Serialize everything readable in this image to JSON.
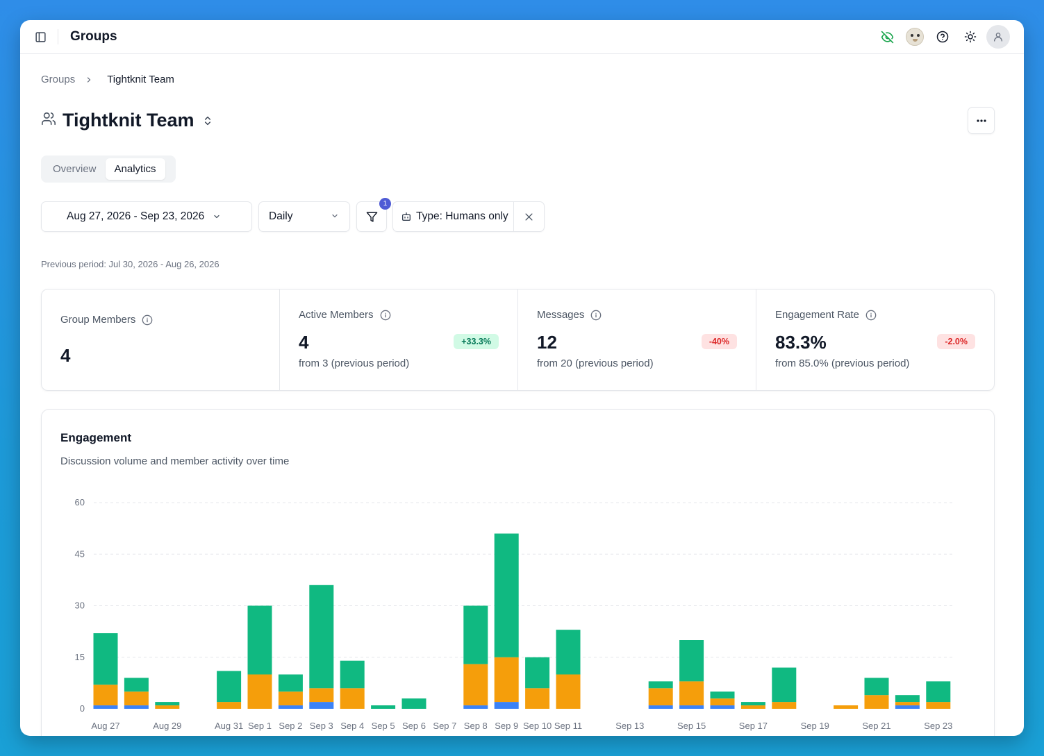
{
  "app": {
    "title": "Groups"
  },
  "icons": {
    "sidebar_toggle": "sidebar-icon",
    "visibility": "eye-off-icon",
    "mascot": "mascot-avatar",
    "help": "help-circle-icon",
    "theme": "sun-icon",
    "user": "user-icon"
  },
  "breadcrumb": {
    "parent": "Groups",
    "current": "Tightknit Team"
  },
  "group": {
    "name": "Tightknit Team"
  },
  "tabs": [
    {
      "label": "Overview",
      "active": false
    },
    {
      "label": "Analytics",
      "active": true
    }
  ],
  "filters": {
    "date_range": "Aug 27, 2026 - Sep 23, 2026",
    "granularity": "Daily",
    "filter_count": "1",
    "chip_label": "Type: Humans only",
    "previous_period": "Previous period: Jul 30, 2026 - Aug 26, 2026"
  },
  "stats": [
    {
      "label": "Group Members",
      "value": "4"
    },
    {
      "label": "Active Members",
      "value": "4",
      "delta": "+33.3%",
      "delta_dir": "up",
      "sub": "from 3 (previous period)"
    },
    {
      "label": "Messages",
      "value": "12",
      "delta": "-40%",
      "delta_dir": "down",
      "sub": "from 20 (previous period)"
    },
    {
      "label": "Engagement Rate",
      "value": "83.3%",
      "delta": "-2.0%",
      "delta_dir": "down",
      "sub": "from 85.0% (previous period)"
    }
  ],
  "colors": {
    "series_blue": "#3b82f6",
    "series_orange": "#f59e0b",
    "series_green": "#10b981",
    "positive_badge": "#d1fae5",
    "negative_badge": "#fee2e2",
    "badge_accent": "#4f5bd5"
  },
  "engagement": {
    "title": "Engagement",
    "subtitle": "Discussion volume and member activity over time"
  },
  "chart_data": {
    "type": "bar",
    "stacked": true,
    "categories": [
      "Aug 27",
      "Aug 28",
      "Aug 29",
      "Aug 30",
      "Aug 31",
      "Sep 1",
      "Sep 2",
      "Sep 3",
      "Sep 4",
      "Sep 5",
      "Sep 6",
      "Sep 7",
      "Sep 8",
      "Sep 9",
      "Sep 10",
      "Sep 11",
      "Sep 12",
      "Sep 13",
      "Sep 14",
      "Sep 15",
      "Sep 16",
      "Sep 17",
      "Sep 18",
      "Sep 19",
      "Sep 20",
      "Sep 21",
      "Sep 22",
      "Sep 23"
    ],
    "tick_labels": [
      "Aug 27",
      "",
      "Aug 29",
      "",
      "Aug 31",
      "Sep 1",
      "Sep 2",
      "Sep 3",
      "Sep 4",
      "Sep 5",
      "Sep 6",
      "Sep 7",
      "Sep 8",
      "Sep 9",
      "Sep 10",
      "Sep 11",
      "",
      "Sep 13",
      "",
      "Sep 15",
      "",
      "Sep 17",
      "",
      "Sep 19",
      "",
      "Sep 21",
      "",
      "Sep 23"
    ],
    "series": [
      {
        "color": "#3b82f6",
        "values": [
          1,
          1,
          0,
          0,
          0,
          0,
          1,
          2,
          0,
          0,
          0,
          0,
          1,
          2,
          0,
          0,
          0,
          0,
          1,
          1,
          1,
          0,
          0,
          0,
          0,
          0,
          1,
          0
        ]
      },
      {
        "color": "#f59e0b",
        "values": [
          6,
          4,
          1,
          0,
          2,
          10,
          4,
          4,
          6,
          0,
          0,
          0,
          12,
          13,
          6,
          10,
          0,
          0,
          5,
          7,
          2,
          1,
          2,
          0,
          1,
          4,
          1,
          2
        ]
      },
      {
        "color": "#10b981",
        "values": [
          15,
          4,
          1,
          0,
          9,
          20,
          5,
          30,
          8,
          1,
          3,
          0,
          17,
          36,
          9,
          13,
          0,
          0,
          2,
          12,
          2,
          1,
          10,
          0,
          0,
          5,
          2,
          6
        ]
      }
    ],
    "yticks": [
      0,
      15,
      30,
      45,
      60
    ],
    "ylim": [
      0,
      60
    ],
    "grid": true,
    "legend": false
  }
}
